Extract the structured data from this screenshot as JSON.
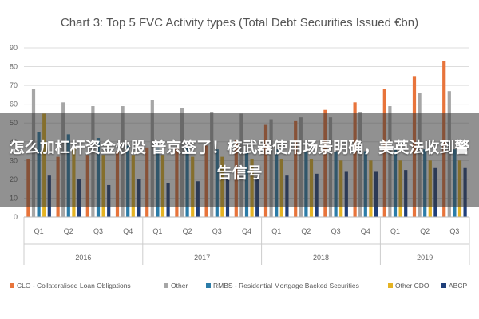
{
  "chart_data": {
    "type": "bar",
    "title": "Chart 3: Top 5 FVC Activity types (Total Debt Securities Issued €bn)",
    "xlabel": "",
    "ylabel": "",
    "ylim": [
      0,
      90
    ],
    "yticks": [
      0,
      10,
      20,
      30,
      40,
      50,
      60,
      70,
      80,
      90
    ],
    "grid": true,
    "legend_position": "bottom",
    "categories": [
      "Q1",
      "Q2",
      "Q3",
      "Q4",
      "Q1",
      "Q2",
      "Q3",
      "Q4",
      "Q1",
      "Q2",
      "Q3",
      "Q4",
      "Q1",
      "Q2",
      "Q3"
    ],
    "groups": [
      {
        "label": "2016",
        "count": 4
      },
      {
        "label": "2017",
        "count": 4
      },
      {
        "label": "2018",
        "count": 4
      },
      {
        "label": "2019",
        "count": 3
      }
    ],
    "series": [
      {
        "name": "CLO - Collateralised Loan Obligations",
        "color": "#e8743b",
        "values": [
          31,
          32,
          33,
          35,
          37,
          37,
          38,
          41,
          49,
          51,
          57,
          61,
          68,
          75,
          83
        ]
      },
      {
        "name": "Other",
        "color": "#a6a6a6",
        "values": [
          68,
          61,
          59,
          59,
          62,
          58,
          56,
          55,
          52,
          53,
          53,
          56,
          59,
          66,
          67
        ]
      },
      {
        "name": "RMBS - Residential Mortgage Backed Securities",
        "color": "#2b7ca8",
        "values": [
          45,
          44,
          42,
          38,
          38,
          37,
          36,
          35,
          36,
          35,
          35,
          35,
          36,
          36,
          36
        ]
      },
      {
        "name": "Other CDO",
        "color": "#e5b323",
        "values": [
          55,
          37,
          33,
          33,
          33,
          32,
          32,
          31,
          31,
          31,
          30,
          30,
          30,
          30,
          30
        ]
      },
      {
        "name": "ABCP",
        "color": "#1f3f7a",
        "values": [
          22,
          20,
          17,
          20,
          18,
          19,
          20,
          21,
          22,
          23,
          24,
          24,
          25,
          26,
          26
        ]
      }
    ]
  },
  "overlay": {
    "text": "怎么加杠杆资金炒股 普京签了！核武器使用场景明确，美英法收到警告信号"
  }
}
